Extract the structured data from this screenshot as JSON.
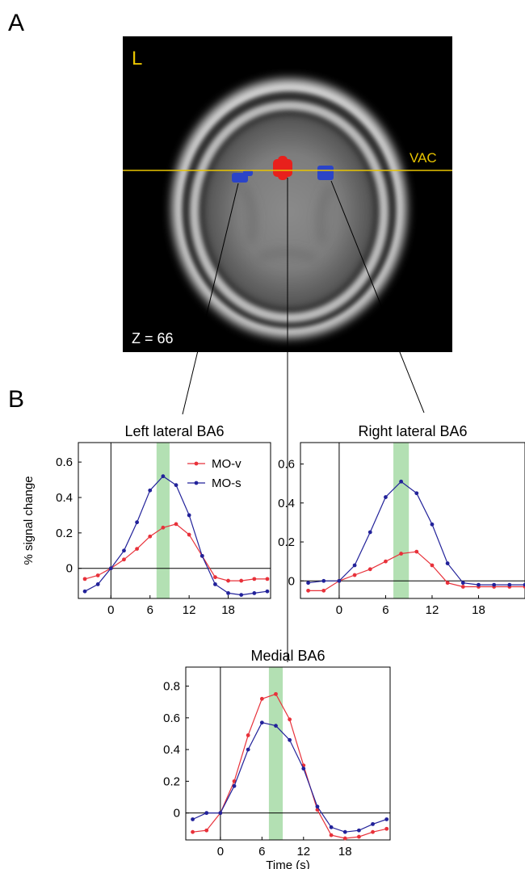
{
  "panel_a": {
    "letter": "A",
    "orientation_label": "L",
    "reference_line_label": "VAC",
    "slice_label": "Z = 66",
    "colors": {
      "medial_cluster": "#e8201c",
      "lateral_cluster": "#2b44c8",
      "reference_line": "#e8c400"
    }
  },
  "panel_b": {
    "letter": "B"
  },
  "colors": {
    "mo_v": "#e8313a",
    "mo_s": "#22229a",
    "window": "#b3e0b3"
  },
  "chart_data": [
    {
      "type": "line",
      "title": "Left lateral BA6",
      "xlabel": "",
      "ylabel": "% signal change",
      "x": [
        -4,
        -2,
        0,
        2,
        4,
        6,
        8,
        10,
        12,
        14,
        16,
        18,
        20,
        22,
        24
      ],
      "xticks": [
        "0",
        "6",
        "12",
        "18"
      ],
      "yticks": [
        "0",
        "0.2",
        "0.4",
        "0.6"
      ],
      "xlim": [
        -5,
        24.5
      ],
      "ylim": [
        -0.17,
        0.71
      ],
      "highlight_window": [
        7,
        9
      ],
      "legend": {
        "position": "top-right",
        "entries": [
          "MO-v",
          "MO-s"
        ]
      },
      "series": [
        {
          "name": "MO-v",
          "values": [
            -0.06,
            -0.04,
            0.0,
            0.05,
            0.11,
            0.18,
            0.23,
            0.25,
            0.19,
            0.07,
            -0.05,
            -0.07,
            -0.07,
            -0.06,
            -0.06
          ]
        },
        {
          "name": "MO-s",
          "values": [
            -0.13,
            -0.09,
            0.0,
            0.1,
            0.26,
            0.44,
            0.52,
            0.47,
            0.3,
            0.07,
            -0.09,
            -0.14,
            -0.15,
            -0.14,
            -0.13
          ]
        }
      ]
    },
    {
      "type": "line",
      "title": "Right lateral BA6",
      "xlabel": "",
      "ylabel": "",
      "x": [
        -4,
        -2,
        0,
        2,
        4,
        6,
        8,
        10,
        12,
        14,
        16,
        18,
        20,
        22,
        24
      ],
      "xticks": [
        "0",
        "6",
        "12",
        "18"
      ],
      "yticks": [
        "0",
        "0.2",
        "0.4",
        "0.6"
      ],
      "xlim": [
        -5,
        24
      ],
      "ylim": [
        -0.09,
        0.71
      ],
      "highlight_window": [
        7,
        9
      ],
      "series": [
        {
          "name": "MO-v",
          "values": [
            -0.05,
            -0.05,
            0.0,
            0.03,
            0.06,
            0.1,
            0.14,
            0.15,
            0.08,
            -0.01,
            -0.03,
            -0.03,
            -0.03,
            -0.03,
            -0.03
          ]
        },
        {
          "name": "MO-s",
          "values": [
            -0.01,
            0.0,
            0.0,
            0.08,
            0.25,
            0.43,
            0.51,
            0.45,
            0.29,
            0.09,
            -0.01,
            -0.02,
            -0.02,
            -0.02,
            -0.02
          ]
        }
      ]
    },
    {
      "type": "line",
      "title": "Medial BA6",
      "xlabel": "Time (s)",
      "ylabel": "",
      "x": [
        -4,
        -2,
        0,
        2,
        4,
        6,
        8,
        10,
        12,
        14,
        16,
        18,
        20,
        22,
        24
      ],
      "xticks": [
        "0",
        "6",
        "12",
        "18"
      ],
      "yticks": [
        "0",
        "0.2",
        "0.4",
        "0.6",
        "0.8"
      ],
      "xlim": [
        -5,
        24.5
      ],
      "ylim": [
        -0.17,
        0.92
      ],
      "highlight_window": [
        7,
        9
      ],
      "series": [
        {
          "name": "MO-v",
          "values": [
            -0.12,
            -0.11,
            0.0,
            0.2,
            0.49,
            0.72,
            0.75,
            0.59,
            0.3,
            0.02,
            -0.14,
            -0.16,
            -0.15,
            -0.12,
            -0.1
          ]
        },
        {
          "name": "MO-s",
          "values": [
            -0.04,
            0.0,
            0.0,
            0.17,
            0.4,
            0.57,
            0.55,
            0.46,
            0.28,
            0.04,
            -0.09,
            -0.12,
            -0.11,
            -0.07,
            -0.04
          ]
        }
      ]
    }
  ]
}
